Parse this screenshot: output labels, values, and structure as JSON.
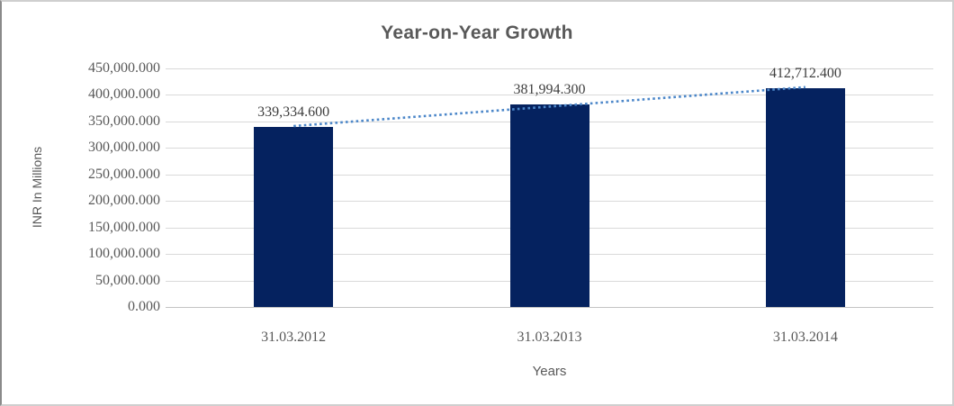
{
  "frame": {
    "background": "#ffffff",
    "border_color": "#cfcfcf",
    "left_border_color": "#8a8a8a"
  },
  "chart_data": {
    "type": "bar",
    "title": "Year-on-Year Growth",
    "xlabel": "Years",
    "ylabel": "INR In Millions",
    "categories": [
      "31.03.2012",
      "31.03.2013",
      "31.03.2014"
    ],
    "values": [
      339334.6,
      381994.3,
      412712.4
    ],
    "data_labels": [
      "339,334.600",
      "381,994.300",
      "412,712.400"
    ],
    "y_ticks": {
      "values": [
        450000,
        400000,
        350000,
        300000,
        250000,
        200000,
        150000,
        100000,
        50000,
        0
      ],
      "labels": [
        "450,000.000",
        "400,000.000",
        "350,000.000",
        "300,000.000",
        "250,000.000",
        "200,000.000",
        "150,000.000",
        "100,000.000",
        "50,000.000",
        "0.000"
      ]
    },
    "ylim": [
      0,
      450000
    ],
    "grid": true,
    "legend": "none",
    "trendline": {
      "type": "linear",
      "style": "dotted"
    },
    "colors": {
      "bar": "#05225f",
      "trendline": "#4c87c9",
      "gridline": "#d9d9d9",
      "axis_line": "#c3c3c3",
      "title": "#595959",
      "tick_label": "#595959",
      "data_label": "#3d3d3d"
    }
  }
}
